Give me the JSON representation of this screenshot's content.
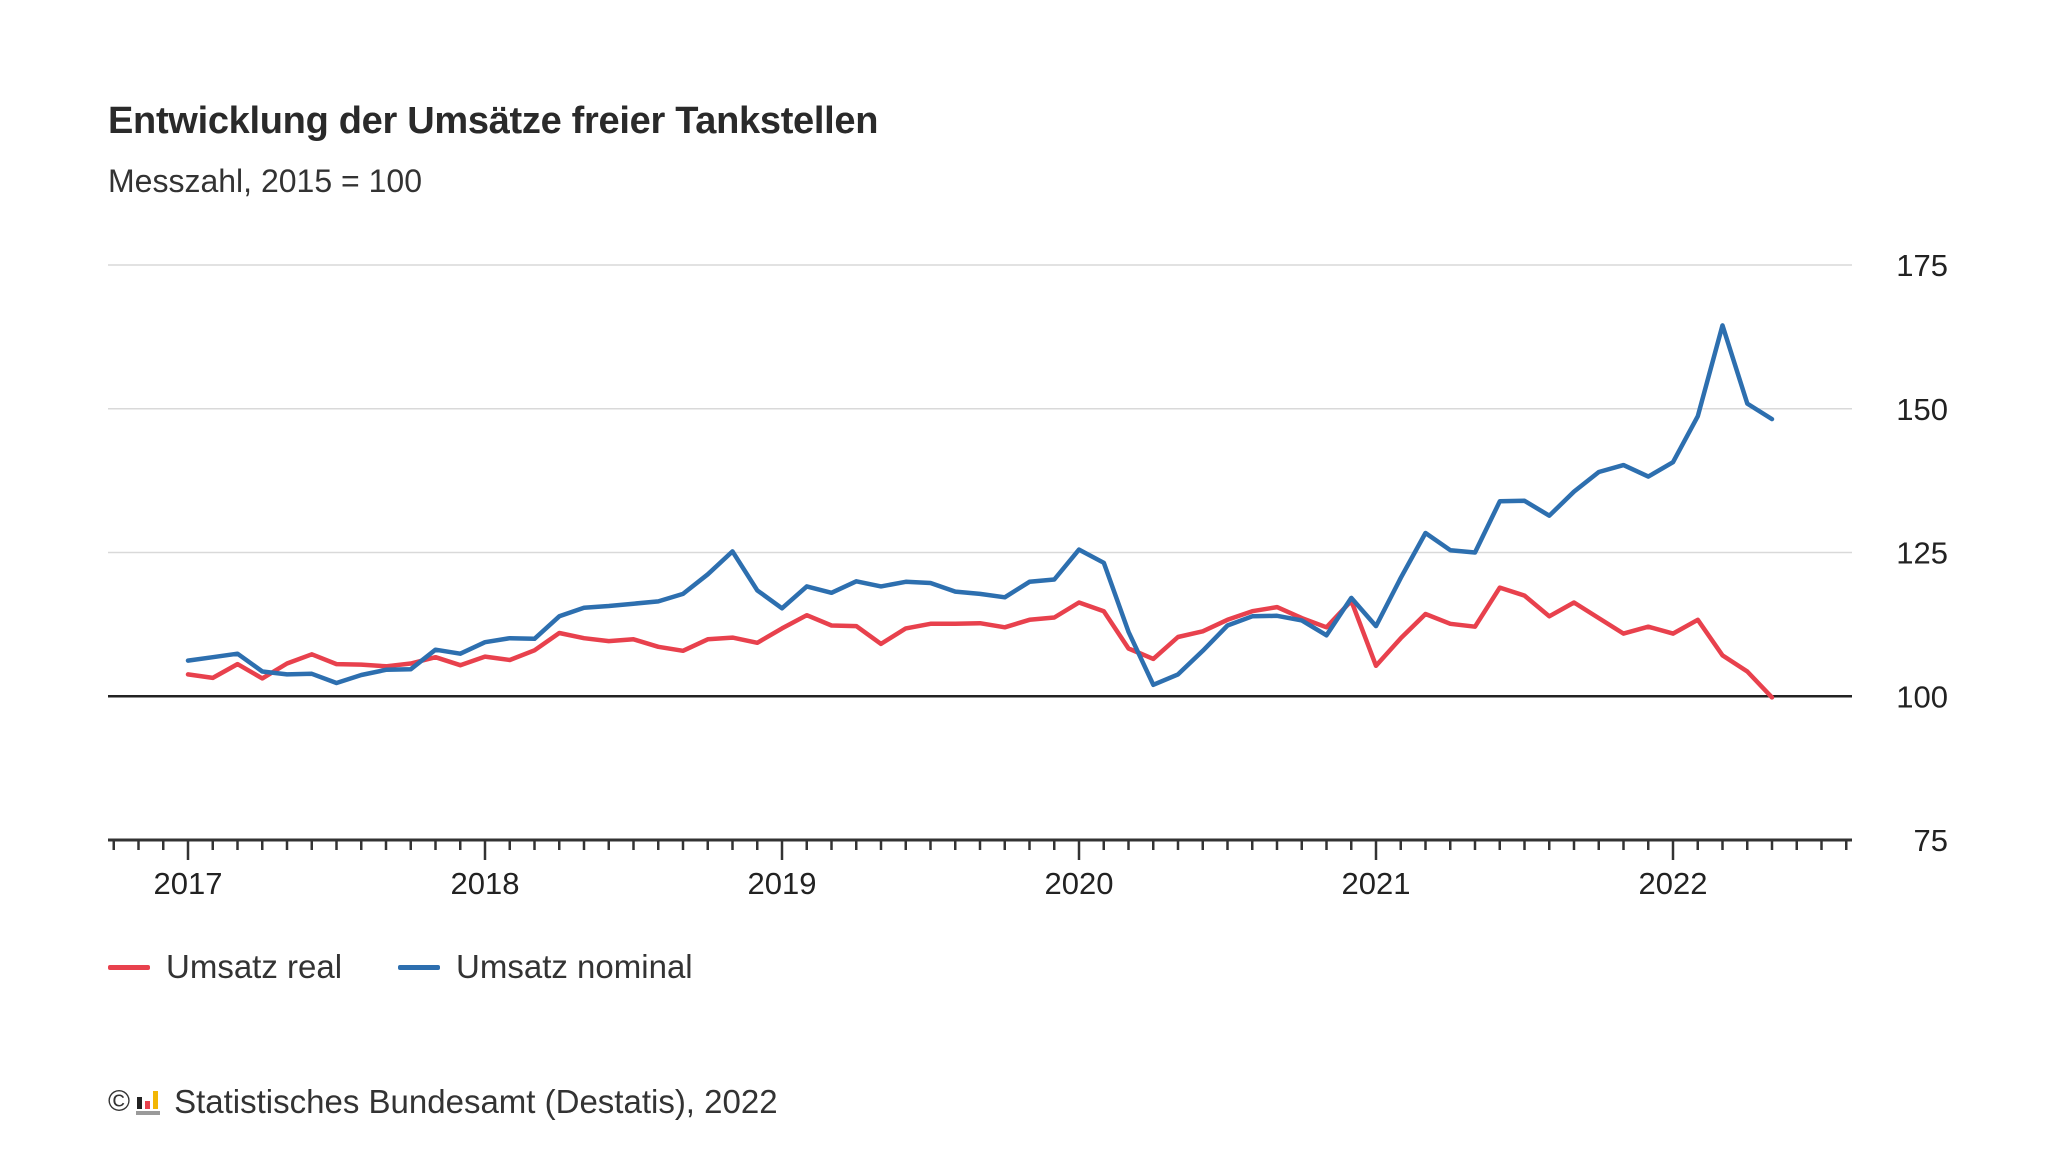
{
  "chart_data": {
    "type": "line",
    "title": "Entwicklung der Umsätze freier Tankstellen",
    "subtitle": "Messzahl, 2015 = 100",
    "xlabel": "",
    "ylabel": "",
    "ylim": [
      75,
      175
    ],
    "yticks": [
      75,
      100,
      125,
      150,
      175
    ],
    "baseline": 100,
    "grid": true,
    "x_start": "2017-01",
    "x_tick_labels": [
      "2017",
      "2018",
      "2019",
      "2020",
      "2021",
      "2022"
    ],
    "legend_position": "bottom-left",
    "series": [
      {
        "name": "Umsatz real",
        "color": "#e8414d",
        "values": [
          103.8,
          103.2,
          105.6,
          103.1,
          105.7,
          107.3,
          105.6,
          105.5,
          105.2,
          105.7,
          106.8,
          105.4,
          106.9,
          106.3,
          108.0,
          111.0,
          110.1,
          109.6,
          109.9,
          108.6,
          107.9,
          109.9,
          110.2,
          109.3,
          111.8,
          114.1,
          112.3,
          112.2,
          109.1,
          111.8,
          112.6,
          112.6,
          112.7,
          112.0,
          113.3,
          113.7,
          116.3,
          114.8,
          108.3,
          106.5,
          110.3,
          111.3,
          113.3,
          114.8,
          115.5,
          113.6,
          112.0,
          116.6,
          105.3,
          110.1,
          114.3,
          112.6,
          112.1,
          118.9,
          117.5,
          113.9,
          116.3,
          113.6,
          110.9,
          112.1,
          110.9,
          113.3,
          107.1,
          104.3,
          99.8
        ]
      },
      {
        "name": "Umsatz nominal",
        "color": "#2d6faf",
        "values": [
          106.2,
          106.8,
          107.4,
          104.3,
          103.8,
          103.9,
          102.3,
          103.7,
          104.6,
          104.7,
          108.1,
          107.4,
          109.4,
          110.1,
          110.0,
          113.9,
          115.4,
          115.7,
          116.1,
          116.5,
          117.8,
          121.2,
          125.2,
          118.4,
          115.3,
          119.1,
          118.0,
          120.0,
          119.1,
          119.9,
          119.7,
          118.2,
          117.8,
          117.2,
          119.9,
          120.3,
          125.5,
          123.2,
          111.2,
          102.0,
          103.8,
          107.9,
          112.3,
          113.9,
          114.0,
          113.2,
          110.6,
          117.1,
          112.2,
          120.6,
          128.4,
          125.4,
          125.0,
          133.9,
          134.0,
          131.4,
          135.6,
          139.0,
          140.2,
          138.2,
          140.7,
          148.7,
          164.5,
          150.9,
          148.2
        ]
      }
    ]
  },
  "legend": {
    "items": [
      {
        "label": "Umsatz real",
        "color": "#e8414d"
      },
      {
        "label": "Umsatz nominal",
        "color": "#2d6faf"
      }
    ]
  },
  "footer": {
    "copyright_symbol": "©",
    "source": "Statistisches Bundesamt (Destatis), 2022"
  }
}
